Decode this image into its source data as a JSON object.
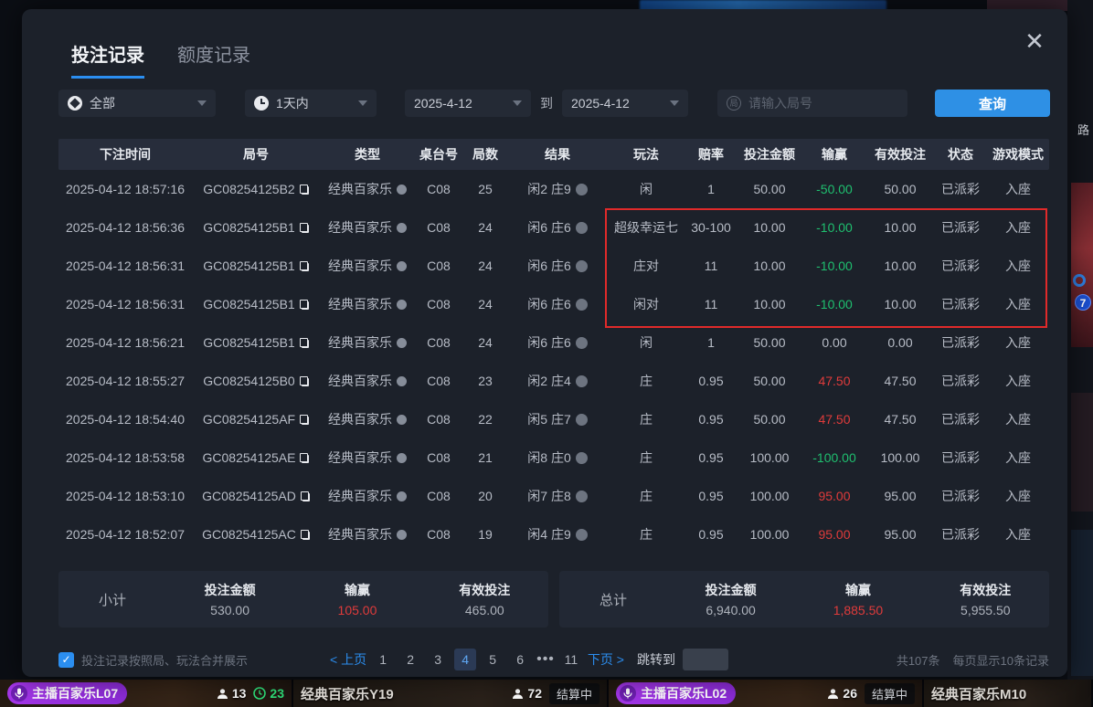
{
  "modal": {
    "tabs": [
      {
        "label": "投注记录",
        "active": true
      },
      {
        "label": "额度记录",
        "active": false
      }
    ],
    "close_label": "✕",
    "filters": {
      "category_value": "全部",
      "time_range_value": "1天内",
      "date_from": "2025-4-12",
      "to_label": "到",
      "date_to": "2025-4-12",
      "search_placeholder": "请输入局号",
      "search_icon_char": "局",
      "query_button": "查询"
    },
    "table": {
      "headers": [
        "下注时间",
        "局号",
        "类型",
        "桌台号",
        "局数",
        "结果",
        "玩法",
        "赔率",
        "投注金额",
        "输赢",
        "有效投注",
        "状态",
        "游戏模式"
      ],
      "rows": [
        {
          "time": "2025-04-12 18:57:16",
          "game_id": "GC08254125B2",
          "type": "经典百家乐",
          "table_no": "C08",
          "round": "25",
          "result": "闲2 庄9",
          "play": "闲",
          "odds": "1",
          "bet": "50.00",
          "win_loss": "-50.00",
          "win_trend": "neg",
          "valid_bet": "50.00",
          "status": "已派彩",
          "mode": "入座"
        },
        {
          "time": "2025-04-12 18:56:36",
          "game_id": "GC08254125B1",
          "type": "经典百家乐",
          "table_no": "C08",
          "round": "24",
          "result": "闲6 庄6",
          "play": "超级幸运七",
          "odds": "30-100",
          "bet": "10.00",
          "win_loss": "-10.00",
          "win_trend": "neg",
          "valid_bet": "10.00",
          "status": "已派彩",
          "mode": "入座"
        },
        {
          "time": "2025-04-12 18:56:31",
          "game_id": "GC08254125B1",
          "type": "经典百家乐",
          "table_no": "C08",
          "round": "24",
          "result": "闲6 庄6",
          "play": "庄对",
          "odds": "11",
          "bet": "10.00",
          "win_loss": "-10.00",
          "win_trend": "neg",
          "valid_bet": "10.00",
          "status": "已派彩",
          "mode": "入座"
        },
        {
          "time": "2025-04-12 18:56:31",
          "game_id": "GC08254125B1",
          "type": "经典百家乐",
          "table_no": "C08",
          "round": "24",
          "result": "闲6 庄6",
          "play": "闲对",
          "odds": "11",
          "bet": "10.00",
          "win_loss": "-10.00",
          "win_trend": "neg",
          "valid_bet": "10.00",
          "status": "已派彩",
          "mode": "入座"
        },
        {
          "time": "2025-04-12 18:56:21",
          "game_id": "GC08254125B1",
          "type": "经典百家乐",
          "table_no": "C08",
          "round": "24",
          "result": "闲6 庄6",
          "play": "闲",
          "odds": "1",
          "bet": "50.00",
          "win_loss": "0.00",
          "win_trend": "zero",
          "valid_bet": "0.00",
          "status": "已派彩",
          "mode": "入座"
        },
        {
          "time": "2025-04-12 18:55:27",
          "game_id": "GC08254125B0",
          "type": "经典百家乐",
          "table_no": "C08",
          "round": "23",
          "result": "闲2 庄4",
          "play": "庄",
          "odds": "0.95",
          "bet": "50.00",
          "win_loss": "47.50",
          "win_trend": "pos",
          "valid_bet": "47.50",
          "status": "已派彩",
          "mode": "入座"
        },
        {
          "time": "2025-04-12 18:54:40",
          "game_id": "GC08254125AF",
          "type": "经典百家乐",
          "table_no": "C08",
          "round": "22",
          "result": "闲5 庄7",
          "play": "庄",
          "odds": "0.95",
          "bet": "50.00",
          "win_loss": "47.50",
          "win_trend": "pos",
          "valid_bet": "47.50",
          "status": "已派彩",
          "mode": "入座"
        },
        {
          "time": "2025-04-12 18:53:58",
          "game_id": "GC08254125AE",
          "type": "经典百家乐",
          "table_no": "C08",
          "round": "21",
          "result": "闲8 庄0",
          "play": "庄",
          "odds": "0.95",
          "bet": "100.00",
          "win_loss": "-100.00",
          "win_trend": "neg",
          "valid_bet": "100.00",
          "status": "已派彩",
          "mode": "入座"
        },
        {
          "time": "2025-04-12 18:53:10",
          "game_id": "GC08254125AD",
          "type": "经典百家乐",
          "table_no": "C08",
          "round": "20",
          "result": "闲7 庄8",
          "play": "庄",
          "odds": "0.95",
          "bet": "100.00",
          "win_loss": "95.00",
          "win_trend": "pos",
          "valid_bet": "95.00",
          "status": "已派彩",
          "mode": "入座"
        },
        {
          "time": "2025-04-12 18:52:07",
          "game_id": "GC08254125AC",
          "type": "经典百家乐",
          "table_no": "C08",
          "round": "19",
          "result": "闲4 庄9",
          "play": "庄",
          "odds": "0.95",
          "bet": "100.00",
          "win_loss": "95.00",
          "win_trend": "pos",
          "valid_bet": "95.00",
          "status": "已派彩",
          "mode": "入座"
        }
      ]
    },
    "subtotal": {
      "label": "小计",
      "bet_title": "投注金额",
      "bet": "530.00",
      "winloss_title": "输赢",
      "winloss": "105.00",
      "valid_title": "有效投注",
      "valid": "465.00"
    },
    "total": {
      "label": "总计",
      "bet_title": "投注金额",
      "bet": "6,940.00",
      "winloss_title": "输赢",
      "winloss": "1,885.50",
      "valid_title": "有效投注",
      "valid": "5,955.50"
    },
    "footer": {
      "merge_label": "投注记录按照局、玩法合并展示",
      "checkbox_checked": true,
      "check_glyph": "✓",
      "pagination": {
        "prev": "< 上页",
        "pages": [
          "1",
          "2",
          "3",
          "4",
          "5",
          "6",
          "•••",
          "11"
        ],
        "active": "4",
        "next": "下页 >",
        "jump_label": "跳转到"
      },
      "total_count": "共107条",
      "page_size": "每页显示10条记录"
    }
  },
  "background": {
    "right_edge_text": "路",
    "seven_badge": "7",
    "bottom_bar": [
      {
        "name": "主播百家乐L07",
        "pill": true,
        "viewers": "13",
        "timer": "23",
        "status": ""
      },
      {
        "name": "经典百家乐Y19",
        "pill": false,
        "viewers": "72",
        "timer": "",
        "status": "结算中"
      },
      {
        "name": "主播百家乐L02",
        "pill": true,
        "viewers": "26",
        "timer": "",
        "status": "结算中"
      },
      {
        "name": "经典百家乐M10",
        "pill": false,
        "viewers": "",
        "timer": "",
        "status": ""
      }
    ]
  }
}
